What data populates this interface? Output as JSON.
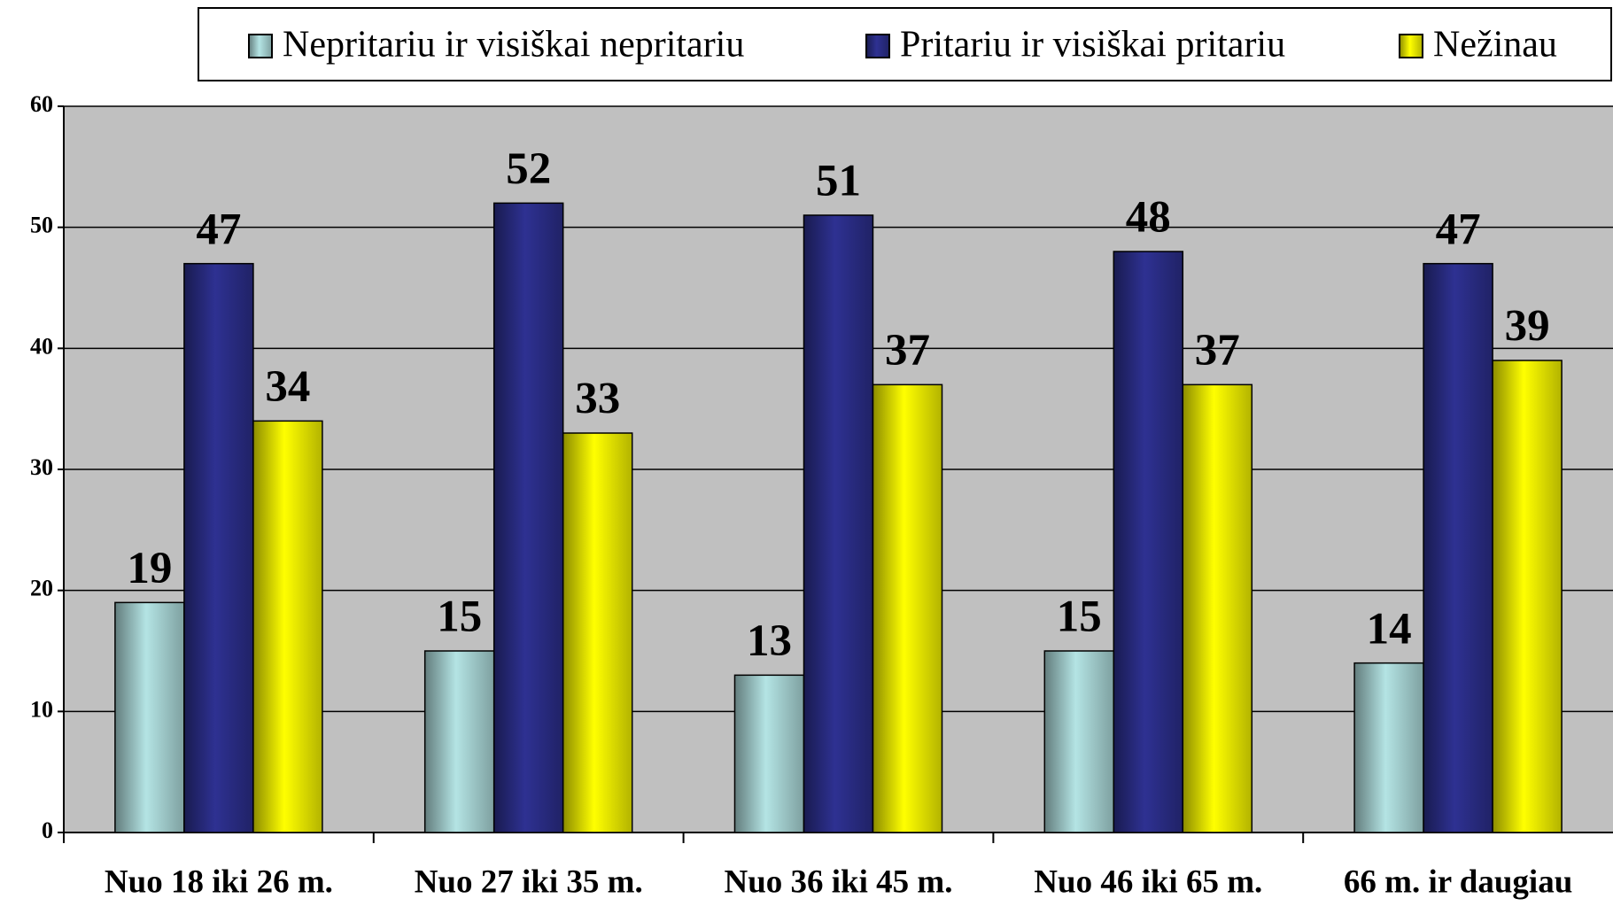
{
  "chart_data": {
    "type": "bar",
    "categories": [
      "Nuo 18 iki 26 m.",
      "Nuo 27 iki 35 m.",
      "Nuo 36 iki 45 m.",
      "Nuo 46 iki 65 m.",
      "66 m. ir daugiau"
    ],
    "series": [
      {
        "name": "Nepritariu ir visiškai nepritariu",
        "color": "#b4e4e4",
        "values": [
          19,
          15,
          13,
          15,
          14
        ]
      },
      {
        "name": "Pritariu ir visiškai pritariu",
        "color": "#2e3192",
        "values": [
          47,
          52,
          51,
          48,
          47
        ]
      },
      {
        "name": "Nežinau",
        "color": "#ffff00",
        "values": [
          34,
          33,
          37,
          37,
          39
        ]
      }
    ],
    "ylim": [
      0,
      60
    ],
    "yticks": [
      0,
      10,
      20,
      30,
      40,
      50,
      60
    ],
    "grid": true,
    "legend": "top"
  }
}
